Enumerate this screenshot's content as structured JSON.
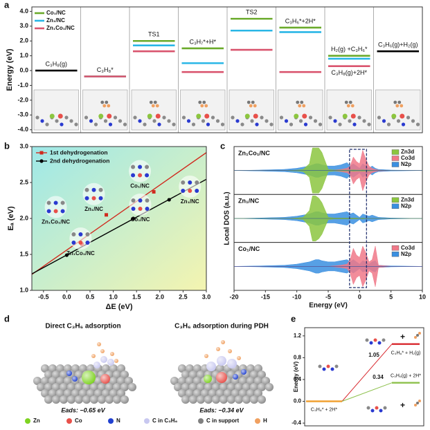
{
  "panel_labels": [
    "a",
    "b",
    "c",
    "d",
    "e"
  ],
  "chart_data": [
    {
      "type": "step",
      "ylabel": "Energy (eV)",
      "ylim": [
        -4.2,
        4.3
      ],
      "yticks": [
        {
          "value": 4,
          "label": "4.0"
        },
        {
          "value": 3,
          "label": "3.0"
        },
        {
          "value": 2,
          "label": "2.0"
        },
        {
          "value": 1,
          "label": "1.0"
        },
        {
          "value": 0,
          "label": "0.0"
        },
        {
          "value": -1,
          "label": "-1.0"
        },
        {
          "value": -2,
          "label": "-2.0"
        },
        {
          "value": -3,
          "label": "-3.0"
        },
        {
          "value": -4,
          "label": "-4.0"
        }
      ],
      "categories": [
        "C₃H₈(g)",
        "C₃H₈*",
        "TS1",
        "C₃H₇*+H*",
        "TS2",
        "C₃H₆*+2H*",
        "H₂(g) +C₃H₆*",
        "C₃H₆(g)+H₂(g)"
      ],
      "annotation": "C₃H₈(g)+2H*",
      "gas_levels": {
        "color": "#000000",
        "values": [
          0,
          null,
          null,
          null,
          null,
          null,
          null,
          1.3
        ]
      },
      "series": [
        {
          "name": "Co₁/NC",
          "color": "#6aaa2a",
          "values": [
            null,
            -0.4,
            2.0,
            1.5,
            3.5,
            2.9,
            1.0,
            null
          ]
        },
        {
          "name": "Zn₁/NC",
          "color": "#29b6e6",
          "values": [
            null,
            -0.4,
            1.7,
            0.5,
            2.7,
            2.6,
            0.8,
            null
          ]
        },
        {
          "name": "Zn₁Co₁/NC",
          "color": "#d9546e",
          "values": [
            null,
            -0.4,
            1.3,
            -0.1,
            1.4,
            -0.1,
            0.3,
            null
          ]
        }
      ]
    },
    {
      "type": "scatter",
      "xlabel": "ΔE (eV)",
      "ylabel": "Eₐ (eV)",
      "xlim": [
        -0.75,
        3.0
      ],
      "ylim": [
        1.0,
        3.0
      ],
      "xticks": [
        -0.5,
        {
          "value": 0,
          "label": "0.0"
        },
        0.5,
        {
          "value": 1,
          "label": "1.0"
        },
        1.5,
        {
          "value": 2,
          "label": "2.0"
        },
        2.5,
        {
          "value": 3,
          "label": "3.0"
        }
      ],
      "yticks": [
        {
          "value": 1,
          "label": "1.0"
        },
        1.5,
        {
          "value": 2,
          "label": "2.0"
        },
        2.5,
        {
          "value": 3,
          "label": "3.0"
        }
      ],
      "fit": true,
      "series": [
        {
          "name": "1st dehydrogenation",
          "color": "#d02a1e",
          "marker": "square",
          "x": [
            0.33,
            0.85,
            1.87
          ],
          "values": [
            1.64,
            2.05,
            2.37
          ],
          "labels": [
            "Zn₁Co₁/NC",
            "Zn₁/NC",
            "Co₁/NC"
          ]
        },
        {
          "name": "2nd dehydrogenation",
          "color": "#000000",
          "marker": "circle",
          "x": [
            0,
            1.43,
            2.2
          ],
          "values": [
            1.49,
            2.0,
            2.26
          ],
          "labels": [
            "Zn₁Co₁/NC",
            "Co₁/NC",
            "Zn₁/NC"
          ]
        }
      ]
    },
    {
      "type": "dos",
      "xlabel": "Energy (eV)",
      "ylabel": "Local DOS (a.u.)",
      "xlim": [
        -20,
        10
      ],
      "xticks": [
        -20,
        -15,
        -10,
        -5,
        0,
        5,
        10
      ],
      "x": [
        -20,
        -16,
        -12,
        -10,
        -9,
        -8,
        -7.5,
        -7,
        -6.5,
        -6,
        -5,
        -4,
        -3,
        -2,
        -1.5,
        -1,
        -0.5,
        0,
        0.5,
        1,
        1.5,
        2,
        2.5,
        3,
        5,
        10
      ],
      "panels": [
        {
          "label": "Zn₁Co₁/NC",
          "series": [
            {
              "name": "Zn3d",
              "color": "#8cc63f",
              "values": [
                0,
                0,
                0,
                0.02,
                0.05,
                0.3,
                1,
                1,
                1,
                0.8,
                0.05,
                0.02,
                0.02,
                0.02,
                0.02,
                0.03,
                0.02,
                0.02,
                0.03,
                0.02,
                0.02,
                0.01,
                0,
                0,
                0,
                0
              ]
            },
            {
              "name": "Co3d",
              "color": "#f07888",
              "values": [
                0,
                0,
                0,
                0,
                0,
                0,
                0,
                0,
                0,
                0,
                0,
                0.02,
                0.05,
                0.1,
                0.2,
                0.6,
                0.4,
                0.3,
                0.9,
                0.5,
                0.2,
                0.1,
                0.05,
                0.02,
                0,
                0
              ]
            },
            {
              "name": "N2p",
              "color": "#3a8fe0",
              "values": [
                0,
                0.02,
                0.05,
                0.1,
                0.15,
                0.2,
                0.25,
                0.3,
                0.3,
                0.25,
                0.2,
                0.2,
                0.25,
                0.35,
                0.2,
                0.3,
                0.2,
                0.1,
                0.3,
                0.2,
                0.1,
                0.2,
                0.1,
                0.05,
                0.02,
                0
              ]
            }
          ]
        },
        {
          "label": "Zn₁/NC",
          "series": [
            {
              "name": "Zn3d",
              "color": "#8cc63f",
              "values": [
                0,
                0,
                0,
                0.02,
                0.05,
                0.35,
                1,
                1,
                0.9,
                0.7,
                0.05,
                0.02,
                0.02,
                0.02,
                0.02,
                0.02,
                0.02,
                0.01,
                0.02,
                0.01,
                0.01,
                0,
                0,
                0,
                0,
                0
              ]
            },
            {
              "name": "N2p",
              "color": "#3a8fe0",
              "values": [
                0,
                0.02,
                0.05,
                0.1,
                0.15,
                0.2,
                0.25,
                0.3,
                0.3,
                0.25,
                0.2,
                0.2,
                0.25,
                0.3,
                0.2,
                0.25,
                0.15,
                0.05,
                0.2,
                0.15,
                0.1,
                0.15,
                0.1,
                0.05,
                0.02,
                0
              ]
            }
          ]
        },
        {
          "label": "Co₁/NC",
          "series": [
            {
              "name": "Co3d",
              "color": "#f07888",
              "values": [
                0,
                0,
                0,
                0,
                0,
                0,
                0,
                0,
                0,
                0,
                0,
                0.02,
                0.05,
                0.1,
                0.3,
                0.8,
                0.5,
                0.4,
                0.9,
                0.6,
                0.2,
                0.3,
                0.9,
                0.05,
                0,
                0
              ]
            },
            {
              "name": "N2p",
              "color": "#3a8fe0",
              "values": [
                0,
                0.02,
                0.05,
                0.1,
                0.15,
                0.2,
                0.25,
                0.3,
                0.3,
                0.25,
                0.2,
                0.2,
                0.25,
                0.3,
                0.2,
                0.3,
                0.2,
                0.1,
                0.25,
                0.2,
                0.1,
                0.2,
                0.25,
                0.05,
                0.02,
                0
              ]
            }
          ]
        }
      ]
    },
    {
      "type": "level",
      "ylabel": "Energy (eV)",
      "ylim": [
        -0.45,
        1.35
      ],
      "yticks": [
        -0.4,
        {
          "value": 0,
          "label": "0.0"
        },
        0.4,
        0.8,
        1.2
      ],
      "levels": [
        {
          "name": "C₃H₆* + 2H*",
          "value": 0,
          "color": "#f0a030",
          "show_value": false
        },
        {
          "name": "C₃H₆* + H₂(g)",
          "value": 1.05,
          "color": "#d8282e",
          "show_value": true
        },
        {
          "name": "C₃H₆(g) + 2H*",
          "value": 0.34,
          "color": "#8cc04a",
          "show_value": true
        }
      ],
      "annotations": [
        "+",
        "+"
      ]
    }
  ],
  "panel_d": {
    "left_title": "Direct C₃H₆ adsorption",
    "right_title": "C₃H₆ adsorption during PDH",
    "left_energy": "Eads: −0.65 eV",
    "right_energy": "Eads: −0.34 eV",
    "title_color": "#e03020",
    "legend": [
      {
        "name": "Zn",
        "color": "#7ed321"
      },
      {
        "name": "Co",
        "color": "#e8504a"
      },
      {
        "name": "N",
        "color": "#2040d0"
      },
      {
        "name": "C in C₃H₆",
        "color": "#c8c8f0"
      },
      {
        "name": "C in support",
        "color": "#808080"
      },
      {
        "name": "H",
        "color": "#f0a060"
      }
    ]
  }
}
